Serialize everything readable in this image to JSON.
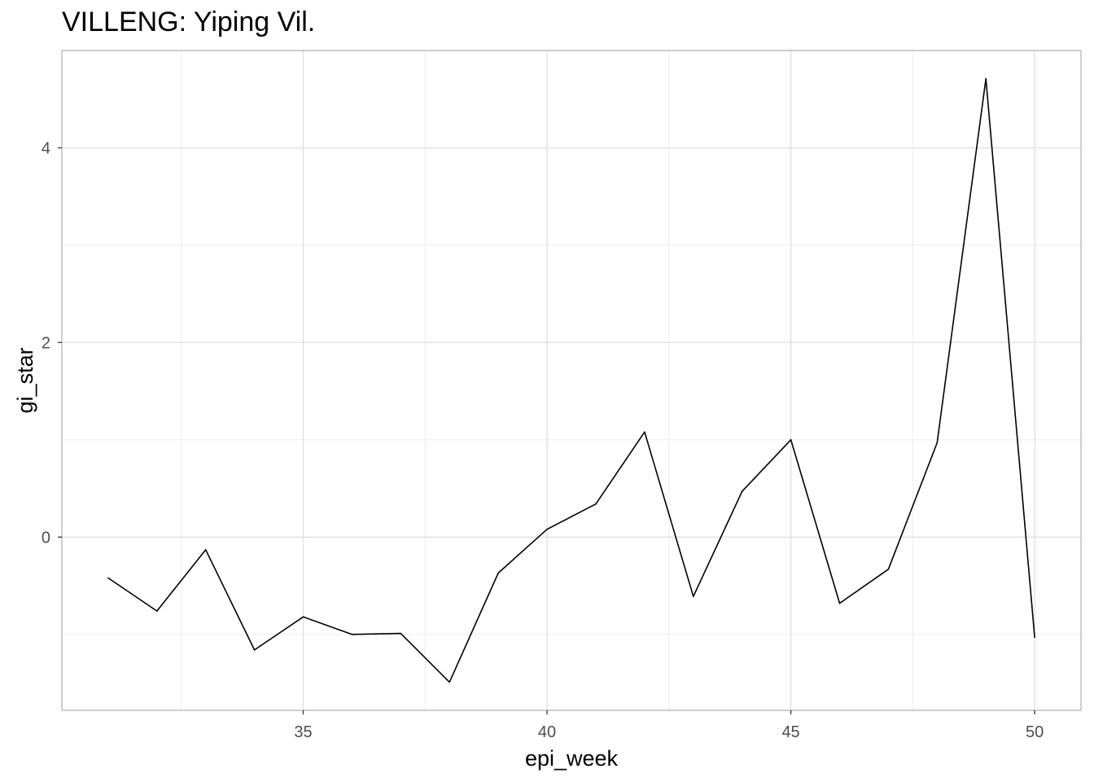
{
  "chart_data": {
    "type": "line",
    "title": "VILLENG: Yiping Vil.",
    "xlabel": "epi_week",
    "ylabel": "gi_star",
    "xlim": [
      30.05,
      50.95
    ],
    "ylim": [
      -1.78,
      5.0
    ],
    "x_ticks": [
      35,
      40,
      45,
      50
    ],
    "x_tick_labels": [
      "35",
      "40",
      "45",
      "50"
    ],
    "y_ticks": [
      0,
      2,
      4
    ],
    "y_tick_labels": [
      "0",
      "2",
      "4"
    ],
    "grid": true,
    "line_color": "#000000",
    "series": [
      {
        "x": [
          31,
          32,
          33,
          34,
          35,
          36,
          37,
          38,
          39,
          40,
          41,
          42,
          43,
          44,
          45,
          46,
          47,
          48,
          49,
          50
        ],
        "values": [
          -0.42,
          -0.76,
          -0.13,
          -1.16,
          -0.82,
          -1.0,
          -0.99,
          -1.49,
          -0.37,
          0.08,
          0.34,
          1.08,
          -0.61,
          0.47,
          1.0,
          -0.68,
          -0.33,
          0.97,
          4.71,
          -1.03
        ]
      }
    ]
  }
}
